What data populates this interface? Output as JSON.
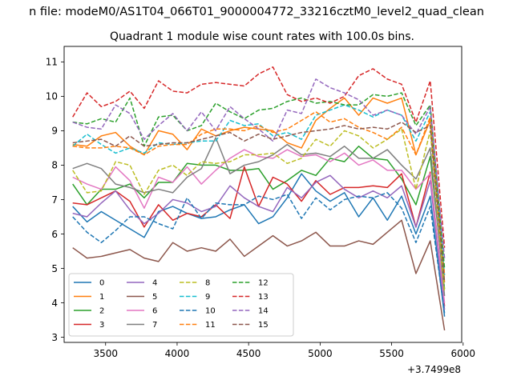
{
  "chart_data": {
    "type": "line",
    "suptitle": "n file: modeM0/AS1T04_066T01_9000004772_33216cztM0_level2_quad_clean",
    "title": "Quadrant 1 module wise count rates with 100.0s bins.",
    "xlabel": "",
    "ylabel": "",
    "x_offset_label": "+3.7499e8",
    "xlim": [
      3210,
      5990
    ],
    "ylim": [
      2.85,
      11.45
    ],
    "xticks": [
      3500,
      4000,
      4500,
      5000,
      5500,
      6000
    ],
    "yticks": [
      3,
      4,
      5,
      6,
      7,
      8,
      9,
      10,
      11
    ],
    "grid": false,
    "legend_position": "lower-left",
    "legend_columns": 4,
    "x": [
      3270,
      3370,
      3470,
      3570,
      3670,
      3770,
      3870,
      3970,
      4070,
      4170,
      4270,
      4370,
      4470,
      4570,
      4670,
      4770,
      4870,
      4970,
      5070,
      5170,
      5270,
      5370,
      5470,
      5570,
      5670,
      5770,
      5870
    ],
    "series": [
      {
        "name": "0",
        "color": "#1f77b4",
        "dash": "solid",
        "values": [
          6.8,
          6.35,
          6.65,
          6.4,
          6.15,
          5.9,
          6.65,
          6.8,
          6.6,
          6.45,
          6.5,
          6.7,
          6.85,
          6.3,
          6.5,
          7.05,
          7.75,
          7.25,
          6.95,
          7.2,
          6.5,
          7.05,
          6.4,
          7.1,
          6.0,
          7.1,
          3.6
        ]
      },
      {
        "name": "1",
        "color": "#ff7f0e",
        "dash": "solid",
        "values": [
          8.6,
          8.55,
          8.85,
          8.95,
          8.55,
          8.3,
          9.0,
          8.9,
          8.45,
          9.05,
          8.85,
          9.0,
          9.1,
          9.05,
          9.0,
          8.65,
          8.5,
          9.3,
          9.65,
          9.95,
          9.45,
          9.95,
          9.8,
          9.95,
          8.3,
          9.3,
          4.6
        ]
      },
      {
        "name": "2",
        "color": "#2ca02c",
        "dash": "solid",
        "values": [
          7.45,
          6.85,
          7.3,
          7.3,
          7.45,
          7.05,
          7.5,
          7.5,
          8.05,
          8.0,
          8.0,
          7.85,
          7.85,
          7.9,
          7.3,
          7.55,
          7.85,
          7.7,
          8.2,
          8.1,
          8.55,
          8.2,
          8.15,
          7.6,
          6.85,
          8.25,
          4.4
        ]
      },
      {
        "name": "3",
        "color": "#d62728",
        "dash": "solid",
        "values": [
          6.9,
          6.85,
          7.05,
          7.25,
          6.95,
          6.2,
          6.85,
          6.4,
          6.6,
          6.5,
          6.85,
          6.45,
          7.95,
          6.8,
          7.65,
          7.45,
          6.95,
          7.55,
          7.15,
          7.35,
          7.35,
          7.4,
          7.35,
          7.75,
          6.2,
          7.8,
          3.9
        ]
      },
      {
        "name": "4",
        "color": "#9467bd",
        "dash": "solid",
        "values": [
          6.6,
          6.5,
          6.9,
          7.25,
          6.7,
          6.3,
          6.6,
          7.0,
          6.9,
          6.65,
          6.8,
          7.4,
          7.05,
          6.8,
          6.65,
          7.35,
          7.05,
          7.5,
          7.7,
          7.3,
          7.05,
          7.25,
          7.05,
          7.4,
          6.2,
          7.55,
          3.8
        ]
      },
      {
        "name": "5",
        "color": "#8c564b",
        "dash": "solid",
        "values": [
          5.6,
          5.3,
          5.35,
          5.45,
          5.55,
          5.3,
          5.2,
          5.75,
          5.5,
          5.6,
          5.5,
          5.85,
          5.35,
          5.65,
          5.95,
          5.65,
          5.8,
          6.05,
          5.65,
          5.65,
          5.8,
          5.7,
          6.05,
          6.4,
          4.85,
          5.8,
          3.2
        ]
      },
      {
        "name": "6",
        "color": "#e377c2",
        "dash": "solid",
        "values": [
          7.65,
          7.45,
          7.3,
          7.95,
          7.55,
          6.75,
          7.65,
          7.5,
          7.95,
          7.45,
          7.85,
          8.2,
          8.45,
          8.25,
          8.2,
          8.45,
          8.25,
          8.3,
          8.1,
          8.35,
          8.0,
          8.15,
          7.85,
          7.85,
          7.3,
          7.75,
          4.0
        ]
      },
      {
        "name": "7",
        "color": "#7f7f7f",
        "dash": "solid",
        "values": [
          7.9,
          8.05,
          7.9,
          7.45,
          7.35,
          7.2,
          7.3,
          7.2,
          7.65,
          7.9,
          8.8,
          7.75,
          8.0,
          8.1,
          8.3,
          8.6,
          8.3,
          8.35,
          8.25,
          8.55,
          8.2,
          8.2,
          8.45,
          8.0,
          7.6,
          8.5,
          4.2
        ]
      },
      {
        "name": "8",
        "color": "#bcbd22",
        "dash": "dashed",
        "values": [
          7.85,
          7.2,
          7.25,
          8.1,
          8.0,
          7.15,
          7.85,
          8.0,
          7.7,
          8.1,
          8.05,
          8.1,
          8.3,
          8.3,
          8.35,
          8.05,
          8.2,
          8.75,
          8.55,
          9.0,
          8.85,
          8.5,
          8.75,
          9.05,
          7.3,
          9.0,
          4.3
        ]
      },
      {
        "name": "9",
        "color": "#17becf",
        "dash": "dashed",
        "values": [
          8.55,
          8.9,
          8.6,
          8.35,
          8.5,
          8.35,
          8.65,
          8.6,
          8.65,
          8.7,
          8.7,
          9.3,
          9.15,
          9.2,
          8.85,
          8.95,
          8.75,
          9.45,
          9.6,
          9.75,
          9.6,
          9.4,
          9.6,
          9.45,
          8.7,
          9.55,
          4.8
        ]
      },
      {
        "name": "10",
        "color": "#1f77b4",
        "dash": "dashed",
        "values": [
          6.5,
          6.05,
          5.75,
          6.1,
          6.5,
          6.5,
          6.3,
          6.15,
          7.05,
          6.45,
          6.9,
          6.85,
          6.85,
          7.1,
          7.0,
          7.15,
          6.45,
          7.05,
          6.7,
          7.0,
          7.1,
          7.05,
          7.2,
          6.75,
          5.75,
          6.8,
          3.7
        ]
      },
      {
        "name": "11",
        "color": "#ff7f0e",
        "dash": "dashed",
        "values": [
          8.55,
          8.5,
          8.5,
          8.55,
          8.5,
          8.3,
          8.55,
          8.6,
          8.6,
          8.9,
          9.05,
          9.05,
          9.0,
          9.15,
          8.95,
          9.05,
          9.3,
          9.55,
          9.25,
          9.35,
          9.1,
          8.95,
          8.75,
          9.1,
          8.3,
          9.4,
          4.8
        ]
      },
      {
        "name": "12",
        "color": "#2ca02c",
        "dash": "dashed",
        "values": [
          9.25,
          9.2,
          9.35,
          9.25,
          9.95,
          8.55,
          9.4,
          9.45,
          9.0,
          9.15,
          9.8,
          9.55,
          9.35,
          9.6,
          9.65,
          9.85,
          9.95,
          9.8,
          9.85,
          9.75,
          9.75,
          10.05,
          10.0,
          10.1,
          9.15,
          9.75,
          5.0
        ]
      },
      {
        "name": "13",
        "color": "#d62728",
        "dash": "dashed",
        "values": [
          9.4,
          10.1,
          9.7,
          9.85,
          10.15,
          9.65,
          10.45,
          10.15,
          10.1,
          10.35,
          10.4,
          10.35,
          10.3,
          10.65,
          10.85,
          10.05,
          9.85,
          9.95,
          9.8,
          10.0,
          10.6,
          10.8,
          10.5,
          10.35,
          9.25,
          10.45,
          5.6
        ]
      },
      {
        "name": "14",
        "color": "#9467bd",
        "dash": "dashed",
        "values": [
          9.25,
          9.1,
          9.05,
          9.75,
          9.5,
          8.75,
          9.15,
          9.5,
          9.0,
          9.55,
          9.0,
          9.7,
          9.35,
          9.05,
          8.7,
          9.6,
          9.5,
          10.5,
          10.25,
          10.1,
          9.9,
          9.45,
          9.6,
          9.45,
          8.9,
          9.7,
          5.3
        ]
      },
      {
        "name": "15",
        "color": "#8c564b",
        "dash": "dashed",
        "values": [
          8.65,
          8.7,
          8.75,
          8.55,
          8.85,
          8.55,
          8.6,
          8.65,
          8.65,
          8.75,
          8.85,
          8.95,
          8.7,
          8.9,
          8.75,
          8.85,
          8.95,
          9.0,
          9.05,
          9.15,
          9.05,
          9.1,
          9.05,
          9.25,
          8.95,
          9.15,
          4.6
        ]
      }
    ]
  }
}
